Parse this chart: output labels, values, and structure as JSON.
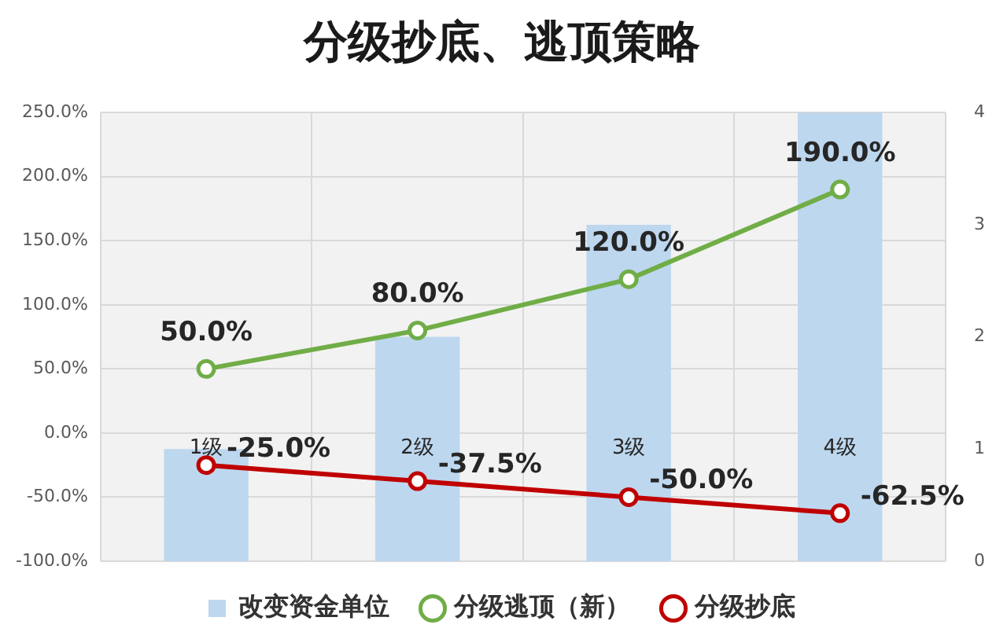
{
  "chart_data": {
    "type": "bar",
    "title": "分级抄底、逃顶策略",
    "categories": [
      "1级",
      "2级",
      "3级",
      "4级"
    ],
    "series": [
      {
        "name": "改变资金单位",
        "axis": "y2",
        "color": "#bdd7ee",
        "values": [
          1,
          2,
          3,
          4
        ]
      },
      {
        "name": "分级逃顶（新）",
        "type": "line",
        "color": "#70ad47",
        "values": [
          50,
          80,
          120,
          190
        ],
        "value_labels": [
          "50.0%",
          "80.0%",
          "120.0%",
          "190.0%"
        ]
      },
      {
        "name": "分级抄底",
        "type": "line",
        "color": "#c00000",
        "values": [
          -25,
          -37.5,
          -50,
          -62.5
        ],
        "value_labels": [
          "-25.0%",
          "-37.5%",
          "-50.0%",
          "-62.5%"
        ]
      }
    ],
    "ylim": [
      -100,
      250
    ],
    "yticks": [
      {
        "value": -100,
        "label": "-100.0%"
      },
      {
        "value": -50,
        "label": "-50.0%"
      },
      {
        "value": 0,
        "label": "0.0%"
      },
      {
        "value": 50,
        "label": "50.0%"
      },
      {
        "value": 100,
        "label": "100.0%"
      },
      {
        "value": 150,
        "label": "150.0%"
      },
      {
        "value": 200,
        "label": "200.0%"
      },
      {
        "value": 250,
        "label": "250.0%"
      }
    ],
    "y2lim": [
      0,
      4
    ],
    "y2ticks": [
      0,
      1,
      2,
      3,
      4
    ],
    "grid": true,
    "legend": "bottom",
    "marker": "circle"
  }
}
